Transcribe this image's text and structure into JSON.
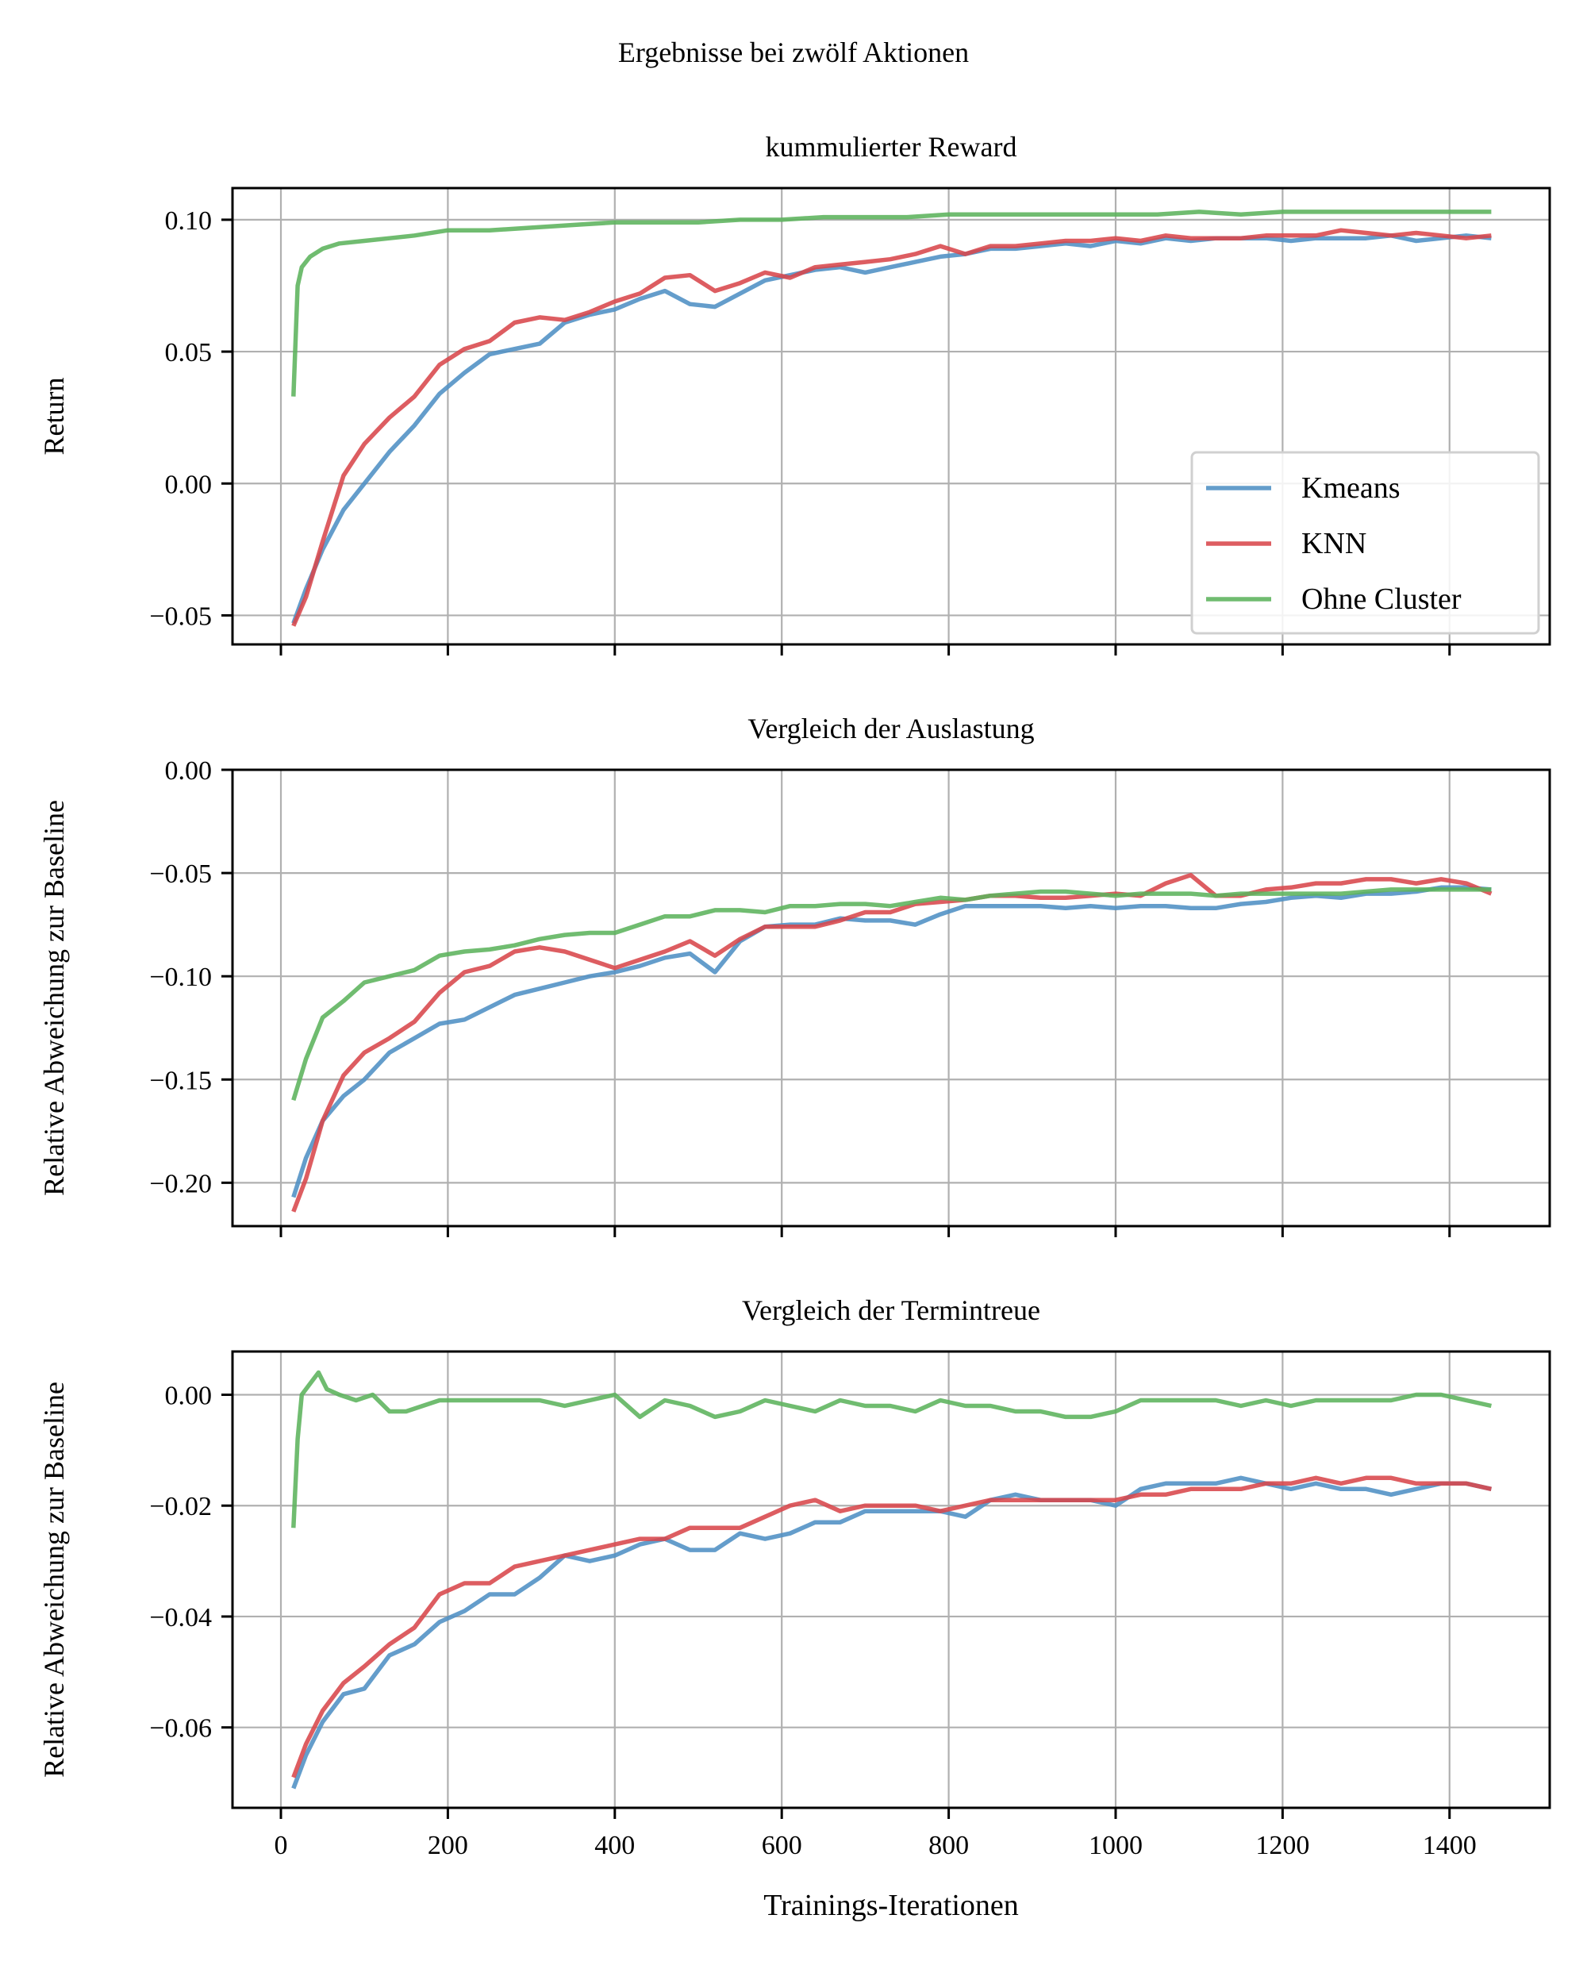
{
  "figure_title": "Ergebnisse bei zwölf Aktionen",
  "colors": {
    "Kmeans": "#4f8fc4",
    "KNN": "#d8474b",
    "Ohne Cluster": "#5cb35c",
    "grid": "#b0b0b0"
  },
  "chart_data": [
    {
      "type": "line",
      "title": "kummulierter Reward",
      "xlabel": "",
      "ylabel": "Return",
      "xlim": [
        -58,
        1520
      ],
      "ylim": [
        -0.061,
        0.112
      ],
      "xticks": [
        0,
        200,
        400,
        600,
        800,
        1000,
        1200,
        1400
      ],
      "xtick_labels": [],
      "yticks": [
        -0.05,
        0.0,
        0.05,
        0.1
      ],
      "ytick_labels": [
        "−0.05",
        "0.00",
        "0.05",
        "0.10"
      ],
      "grid": true,
      "legend": "lower-right",
      "legend_entries": [
        "Kmeans",
        "KNN",
        "Ohne Cluster"
      ],
      "series": [
        {
          "name": "Kmeans",
          "x": [
            15,
            30,
            50,
            75,
            100,
            130,
            160,
            190,
            220,
            250,
            280,
            310,
            340,
            370,
            400,
            430,
            460,
            490,
            520,
            550,
            580,
            610,
            640,
            670,
            700,
            730,
            760,
            790,
            820,
            850,
            880,
            910,
            940,
            970,
            1000,
            1030,
            1060,
            1090,
            1120,
            1150,
            1180,
            1210,
            1240,
            1270,
            1300,
            1330,
            1360,
            1390,
            1420,
            1450
          ],
          "y": [
            -0.053,
            -0.04,
            -0.025,
            -0.01,
            0.0,
            0.012,
            0.022,
            0.034,
            0.042,
            0.049,
            0.051,
            0.053,
            0.061,
            0.064,
            0.066,
            0.07,
            0.073,
            0.068,
            0.067,
            0.072,
            0.077,
            0.079,
            0.081,
            0.082,
            0.08,
            0.082,
            0.084,
            0.086,
            0.087,
            0.089,
            0.089,
            0.09,
            0.091,
            0.09,
            0.092,
            0.091,
            0.093,
            0.092,
            0.093,
            0.093,
            0.093,
            0.092,
            0.093,
            0.093,
            0.093,
            0.094,
            0.092,
            0.093,
            0.094,
            0.093
          ]
        },
        {
          "name": "KNN",
          "x": [
            15,
            30,
            50,
            75,
            100,
            130,
            160,
            190,
            220,
            250,
            280,
            310,
            340,
            370,
            400,
            430,
            460,
            490,
            520,
            550,
            580,
            610,
            640,
            670,
            700,
            730,
            760,
            790,
            820,
            850,
            880,
            910,
            940,
            970,
            1000,
            1030,
            1060,
            1090,
            1120,
            1150,
            1180,
            1210,
            1240,
            1270,
            1300,
            1330,
            1360,
            1390,
            1420,
            1450
          ],
          "y": [
            -0.054,
            -0.043,
            -0.022,
            0.003,
            0.015,
            0.025,
            0.033,
            0.045,
            0.051,
            0.054,
            0.061,
            0.063,
            0.062,
            0.065,
            0.069,
            0.072,
            0.078,
            0.079,
            0.073,
            0.076,
            0.08,
            0.078,
            0.082,
            0.083,
            0.084,
            0.085,
            0.087,
            0.09,
            0.087,
            0.09,
            0.09,
            0.091,
            0.092,
            0.092,
            0.093,
            0.092,
            0.094,
            0.093,
            0.093,
            0.093,
            0.094,
            0.094,
            0.094,
            0.096,
            0.095,
            0.094,
            0.095,
            0.094,
            0.093,
            0.094
          ]
        },
        {
          "name": "Ohne Cluster",
          "x": [
            15,
            20,
            25,
            35,
            50,
            70,
            100,
            130,
            160,
            200,
            250,
            300,
            350,
            400,
            450,
            500,
            550,
            600,
            650,
            700,
            750,
            800,
            850,
            900,
            950,
            1000,
            1050,
            1100,
            1150,
            1200,
            1250,
            1300,
            1350,
            1400,
            1450
          ],
          "y": [
            0.033,
            0.075,
            0.082,
            0.086,
            0.089,
            0.091,
            0.092,
            0.093,
            0.094,
            0.096,
            0.096,
            0.097,
            0.098,
            0.099,
            0.099,
            0.099,
            0.1,
            0.1,
            0.101,
            0.101,
            0.101,
            0.102,
            0.102,
            0.102,
            0.102,
            0.102,
            0.102,
            0.103,
            0.102,
            0.103,
            0.103,
            0.103,
            0.103,
            0.103,
            0.103
          ]
        }
      ]
    },
    {
      "type": "line",
      "title": "Vergleich der Auslastung",
      "xlabel": "",
      "ylabel": "Relative Abweichung zur Baseline",
      "xlim": [
        -58,
        1520
      ],
      "ylim": [
        -0.221,
        0.0
      ],
      "xticks": [
        0,
        200,
        400,
        600,
        800,
        1000,
        1200,
        1400
      ],
      "xtick_labels": [],
      "yticks": [
        -0.2,
        -0.15,
        -0.1,
        -0.05,
        0.0
      ],
      "ytick_labels": [
        "−0.20",
        "−0.15",
        "−0.10",
        "−0.05",
        "0.00"
      ],
      "grid": true,
      "series": [
        {
          "name": "Kmeans",
          "x": [
            15,
            30,
            50,
            75,
            100,
            130,
            160,
            190,
            220,
            250,
            280,
            310,
            340,
            370,
            400,
            430,
            460,
            490,
            520,
            550,
            580,
            610,
            640,
            670,
            700,
            730,
            760,
            790,
            820,
            850,
            880,
            910,
            940,
            970,
            1000,
            1030,
            1060,
            1090,
            1120,
            1150,
            1180,
            1210,
            1240,
            1270,
            1300,
            1330,
            1360,
            1390,
            1420,
            1450
          ],
          "y": [
            -0.207,
            -0.188,
            -0.17,
            -0.158,
            -0.15,
            -0.137,
            -0.13,
            -0.123,
            -0.121,
            -0.115,
            -0.109,
            -0.106,
            -0.103,
            -0.1,
            -0.098,
            -0.095,
            -0.091,
            -0.089,
            -0.098,
            -0.083,
            -0.076,
            -0.075,
            -0.075,
            -0.072,
            -0.073,
            -0.073,
            -0.075,
            -0.07,
            -0.066,
            -0.066,
            -0.066,
            -0.066,
            -0.067,
            -0.066,
            -0.067,
            -0.066,
            -0.066,
            -0.067,
            -0.067,
            -0.065,
            -0.064,
            -0.062,
            -0.061,
            -0.062,
            -0.06,
            -0.06,
            -0.059,
            -0.057,
            -0.057,
            -0.058
          ]
        },
        {
          "name": "KNN",
          "x": [
            15,
            30,
            50,
            75,
            100,
            130,
            160,
            190,
            220,
            250,
            280,
            310,
            340,
            370,
            400,
            430,
            460,
            490,
            520,
            550,
            580,
            610,
            640,
            670,
            700,
            730,
            760,
            790,
            820,
            850,
            880,
            910,
            940,
            970,
            1000,
            1030,
            1060,
            1090,
            1120,
            1150,
            1180,
            1210,
            1240,
            1270,
            1300,
            1330,
            1360,
            1390,
            1420,
            1450
          ],
          "y": [
            -0.214,
            -0.198,
            -0.17,
            -0.148,
            -0.137,
            -0.13,
            -0.122,
            -0.108,
            -0.098,
            -0.095,
            -0.088,
            -0.086,
            -0.088,
            -0.092,
            -0.096,
            -0.092,
            -0.088,
            -0.083,
            -0.09,
            -0.082,
            -0.076,
            -0.076,
            -0.076,
            -0.073,
            -0.069,
            -0.069,
            -0.065,
            -0.064,
            -0.063,
            -0.061,
            -0.061,
            -0.062,
            -0.062,
            -0.061,
            -0.06,
            -0.061,
            -0.055,
            -0.051,
            -0.061,
            -0.061,
            -0.058,
            -0.057,
            -0.055,
            -0.055,
            -0.053,
            -0.053,
            -0.055,
            -0.053,
            -0.055,
            -0.06
          ]
        },
        {
          "name": "Ohne Cluster",
          "x": [
            15,
            30,
            50,
            75,
            100,
            130,
            160,
            190,
            220,
            250,
            280,
            310,
            340,
            370,
            400,
            430,
            460,
            490,
            520,
            550,
            580,
            610,
            640,
            670,
            700,
            730,
            760,
            790,
            820,
            850,
            880,
            910,
            940,
            970,
            1000,
            1030,
            1060,
            1090,
            1120,
            1150,
            1180,
            1210,
            1240,
            1270,
            1300,
            1330,
            1360,
            1390,
            1420,
            1450
          ],
          "y": [
            -0.16,
            -0.14,
            -0.12,
            -0.112,
            -0.103,
            -0.1,
            -0.097,
            -0.09,
            -0.088,
            -0.087,
            -0.085,
            -0.082,
            -0.08,
            -0.079,
            -0.079,
            -0.075,
            -0.071,
            -0.071,
            -0.068,
            -0.068,
            -0.069,
            -0.066,
            -0.066,
            -0.065,
            -0.065,
            -0.066,
            -0.064,
            -0.062,
            -0.063,
            -0.061,
            -0.06,
            -0.059,
            -0.059,
            -0.06,
            -0.061,
            -0.06,
            -0.06,
            -0.06,
            -0.061,
            -0.06,
            -0.06,
            -0.06,
            -0.06,
            -0.06,
            -0.059,
            -0.058,
            -0.058,
            -0.058,
            -0.058,
            -0.058
          ]
        }
      ]
    },
    {
      "type": "line",
      "title": "Vergleich der Termintreue",
      "xlabel": "Trainings-Iterationen",
      "ylabel": "Relative Abweichung zur Baseline",
      "xlim": [
        -58,
        1520
      ],
      "ylim": [
        -0.0745,
        0.0078
      ],
      "xticks": [
        0,
        200,
        400,
        600,
        800,
        1000,
        1200,
        1400
      ],
      "xtick_labels": [
        "0",
        "200",
        "400",
        "600",
        "800",
        "1000",
        "1200",
        "1400"
      ],
      "yticks": [
        -0.06,
        -0.04,
        -0.02,
        0.0
      ],
      "ytick_labels": [
        "−0.06",
        "−0.04",
        "−0.02",
        "0.00"
      ],
      "grid": true,
      "series": [
        {
          "name": "Kmeans",
          "x": [
            15,
            30,
            50,
            75,
            100,
            130,
            160,
            190,
            220,
            250,
            280,
            310,
            340,
            370,
            400,
            430,
            460,
            490,
            520,
            550,
            580,
            610,
            640,
            670,
            700,
            730,
            760,
            790,
            820,
            850,
            880,
            910,
            940,
            970,
            1000,
            1030,
            1060,
            1090,
            1120,
            1150,
            1180,
            1210,
            1240,
            1270,
            1300,
            1330,
            1360,
            1390,
            1420,
            1450
          ],
          "y": [
            -0.071,
            -0.065,
            -0.059,
            -0.054,
            -0.053,
            -0.047,
            -0.045,
            -0.041,
            -0.039,
            -0.036,
            -0.036,
            -0.033,
            -0.029,
            -0.03,
            -0.029,
            -0.027,
            -0.026,
            -0.028,
            -0.028,
            -0.025,
            -0.026,
            -0.025,
            -0.023,
            -0.023,
            -0.021,
            -0.021,
            -0.021,
            -0.021,
            -0.022,
            -0.019,
            -0.018,
            -0.019,
            -0.019,
            -0.019,
            -0.02,
            -0.017,
            -0.016,
            -0.016,
            -0.016,
            -0.015,
            -0.016,
            -0.017,
            -0.016,
            -0.017,
            -0.017,
            -0.018,
            -0.017,
            -0.016,
            -0.016,
            -0.017
          ]
        },
        {
          "name": "KNN",
          "x": [
            15,
            30,
            50,
            75,
            100,
            130,
            160,
            190,
            220,
            250,
            280,
            310,
            340,
            370,
            400,
            430,
            460,
            490,
            520,
            550,
            580,
            610,
            640,
            670,
            700,
            730,
            760,
            790,
            820,
            850,
            880,
            910,
            940,
            970,
            1000,
            1030,
            1060,
            1090,
            1120,
            1150,
            1180,
            1210,
            1240,
            1270,
            1300,
            1330,
            1360,
            1390,
            1420,
            1450
          ],
          "y": [
            -0.069,
            -0.063,
            -0.057,
            -0.052,
            -0.049,
            -0.045,
            -0.042,
            -0.036,
            -0.034,
            -0.034,
            -0.031,
            -0.03,
            -0.029,
            -0.028,
            -0.027,
            -0.026,
            -0.026,
            -0.024,
            -0.024,
            -0.024,
            -0.022,
            -0.02,
            -0.019,
            -0.021,
            -0.02,
            -0.02,
            -0.02,
            -0.021,
            -0.02,
            -0.019,
            -0.019,
            -0.019,
            -0.019,
            -0.019,
            -0.019,
            -0.018,
            -0.018,
            -0.017,
            -0.017,
            -0.017,
            -0.016,
            -0.016,
            -0.015,
            -0.016,
            -0.015,
            -0.015,
            -0.016,
            -0.016,
            -0.016,
            -0.017
          ]
        },
        {
          "name": "Ohne Cluster",
          "x": [
            15,
            20,
            25,
            35,
            45,
            55,
            70,
            90,
            110,
            130,
            150,
            170,
            190,
            220,
            250,
            280,
            310,
            340,
            370,
            400,
            430,
            460,
            490,
            520,
            550,
            580,
            610,
            640,
            670,
            700,
            730,
            760,
            790,
            820,
            850,
            880,
            910,
            940,
            970,
            1000,
            1030,
            1060,
            1090,
            1120,
            1150,
            1180,
            1210,
            1240,
            1270,
            1300,
            1330,
            1360,
            1390,
            1420,
            1450
          ],
          "y": [
            -0.024,
            -0.008,
            0.0,
            0.002,
            0.004,
            0.001,
            0.0,
            -0.001,
            0.0,
            -0.003,
            -0.003,
            -0.002,
            -0.001,
            -0.001,
            -0.001,
            -0.001,
            -0.001,
            -0.002,
            -0.001,
            0.0,
            -0.004,
            -0.001,
            -0.002,
            -0.004,
            -0.003,
            -0.001,
            -0.002,
            -0.003,
            -0.001,
            -0.002,
            -0.002,
            -0.003,
            -0.001,
            -0.002,
            -0.002,
            -0.003,
            -0.003,
            -0.004,
            -0.004,
            -0.003,
            -0.001,
            -0.001,
            -0.001,
            -0.001,
            -0.002,
            -0.001,
            -0.002,
            -0.001,
            -0.001,
            -0.001,
            -0.001,
            0.0,
            0.0,
            -0.001,
            -0.002
          ]
        }
      ]
    }
  ]
}
